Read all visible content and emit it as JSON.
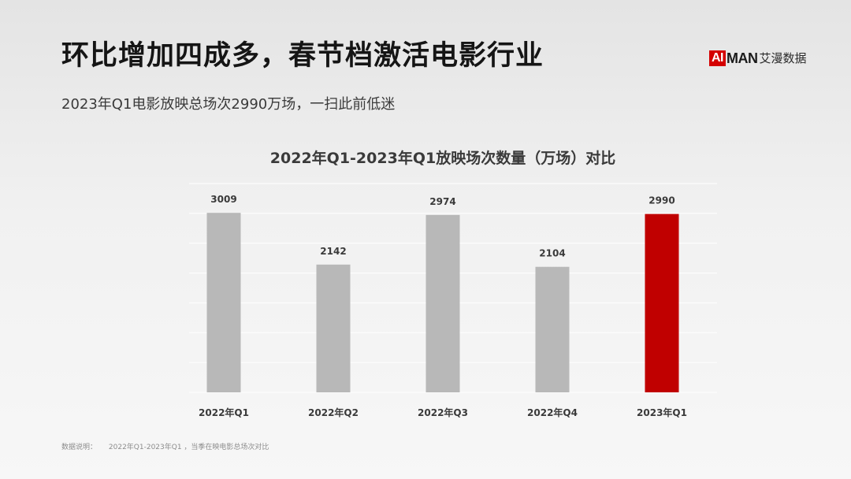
{
  "headline": "环比增加四成多，春节档激活电影行业",
  "subtitle": "2023年Q1电影放映总场次2990万场，一扫此前低迷",
  "logo": {
    "ai": "AI",
    "man": "MAN",
    "cn": "艾漫数据"
  },
  "footnote": {
    "label": "数据说明：",
    "text": "2022年Q1-2023年Q1 ，当季在映电影总场次对比"
  },
  "colors": {
    "bar_default": "#b8b8b8",
    "bar_highlight": "#c00000",
    "gridline": "#ffffff"
  },
  "chart_data": {
    "type": "bar",
    "title": "2022年Q1-2023年Q1放映场次数量（万场）对比",
    "categories": [
      "2022年Q1",
      "2022年Q2",
      "2022年Q3",
      "2022年Q4",
      "2023年Q1"
    ],
    "values": [
      3009,
      2142,
      2974,
      2104,
      2990
    ],
    "value_labels": [
      "3009",
      "2142",
      "2974",
      "2104",
      "2990"
    ],
    "highlight": "2023年Q1",
    "ylim": [
      0,
      3500
    ],
    "xlabel": "",
    "ylabel": "",
    "grid": true,
    "legend": false
  }
}
